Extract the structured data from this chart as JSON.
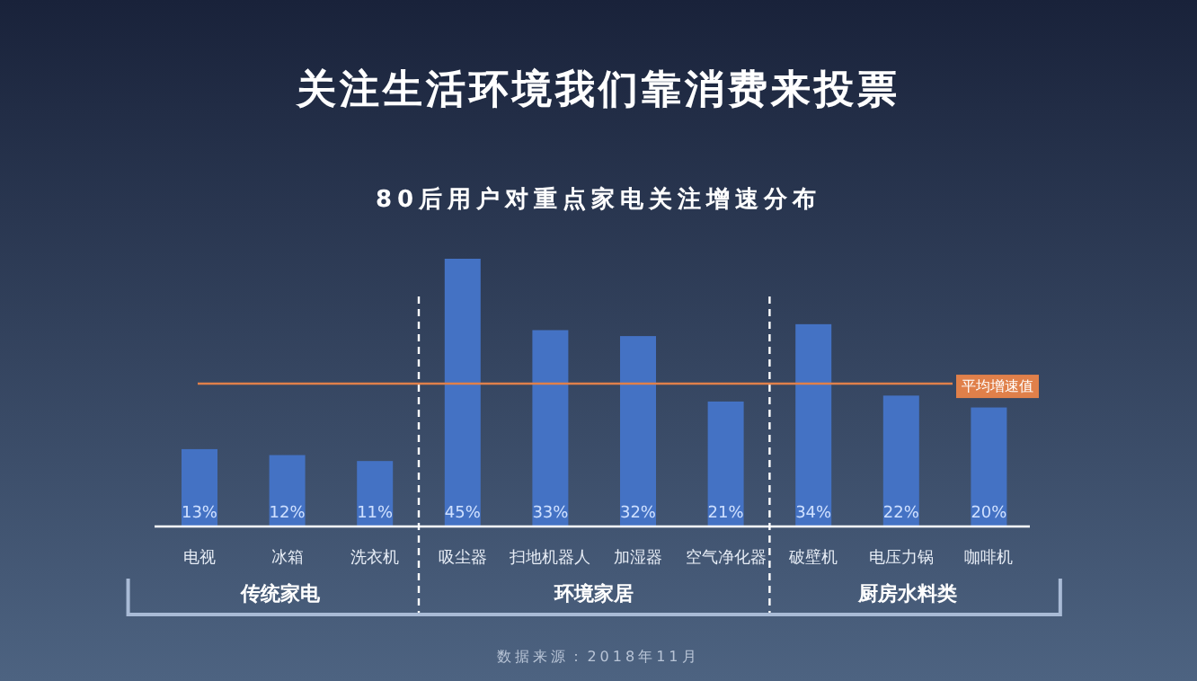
{
  "chart_data": {
    "type": "bar",
    "title": "关注生活环境我们靠消费来投票",
    "subtitle": "80后用户对重点家电关注增速分布",
    "categories": [
      "电视",
      "冰箱",
      "洗衣机",
      "吸尘器",
      "扫地机器人",
      "加湿器",
      "空气净化器",
      "破壁机",
      "电压力锅",
      "咖啡机"
    ],
    "values": [
      13,
      12,
      11,
      45,
      33,
      32,
      21,
      34,
      22,
      20
    ],
    "value_labels": [
      "13%",
      "12%",
      "11%",
      "45%",
      "33%",
      "32%",
      "21%",
      "34%",
      "22%",
      "20%"
    ],
    "color": "#4472c4",
    "ref_lines": [
      {
        "axis": "y",
        "value": 24,
        "label": "平均增速值",
        "color": "#e0804a",
        "line_style": "solid"
      }
    ],
    "annotations": [
      "传统家电",
      "环境家居",
      "厨房水料类",
      "数据来源：2018年11月"
    ]
  }
}
